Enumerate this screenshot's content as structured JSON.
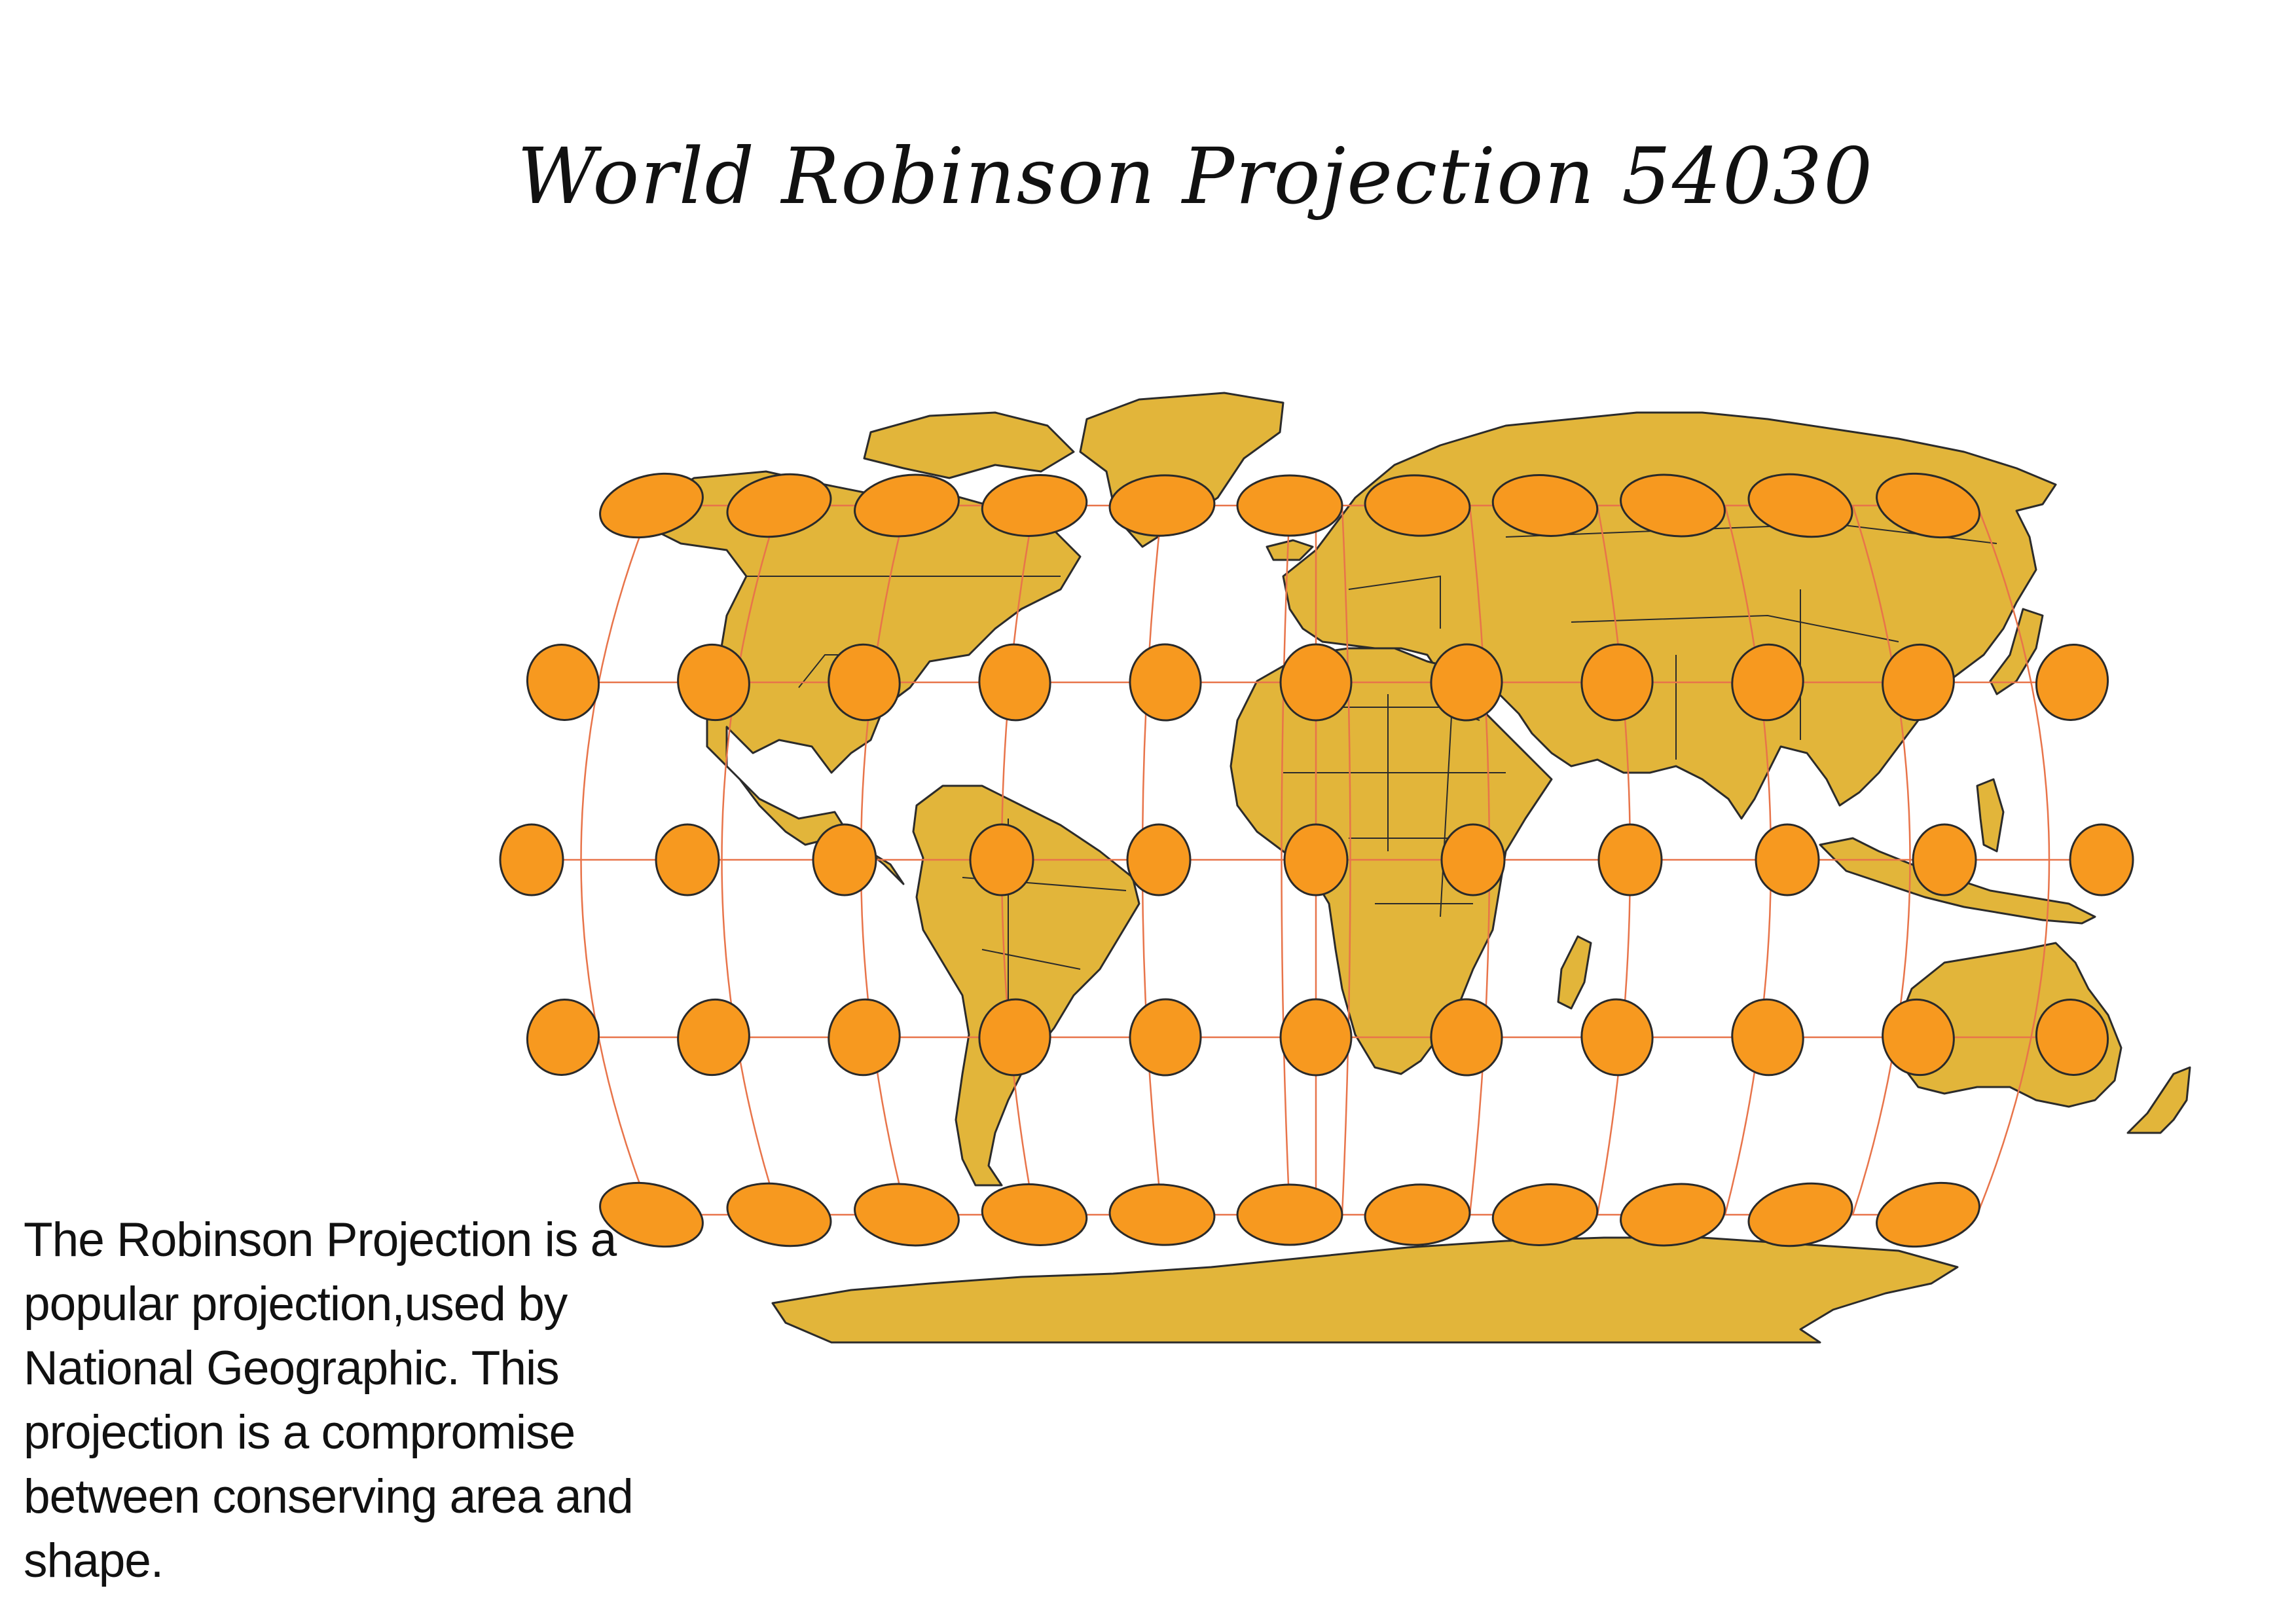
{
  "title": "World Robinson Projection 54030",
  "description": "The Robinson Projection is a popular projection,used by National Geographic. This projection is a compromise between conserving area and shape.",
  "map": {
    "projection": "Robinson",
    "epsg_code": "54030",
    "layers": [
      "land",
      "country-boundaries",
      "graticule",
      "tissot-indicatrices"
    ],
    "colors": {
      "background": "#ffffff",
      "land_fill": "#e2b53a",
      "land_stroke": "#2b2b2b",
      "graticule": "#e8744a",
      "indicatrix_fill": "#f7991f",
      "indicatrix_stroke": "#2a2a2a"
    },
    "graticule_step_deg": 30,
    "indicatrix_grid": {
      "latitudes": [
        60,
        30,
        0,
        -30,
        -60
      ],
      "longitudes": [
        -180,
        -150,
        -120,
        -90,
        -60,
        -30,
        0,
        30,
        60,
        90,
        120,
        150,
        180
      ]
    }
  }
}
